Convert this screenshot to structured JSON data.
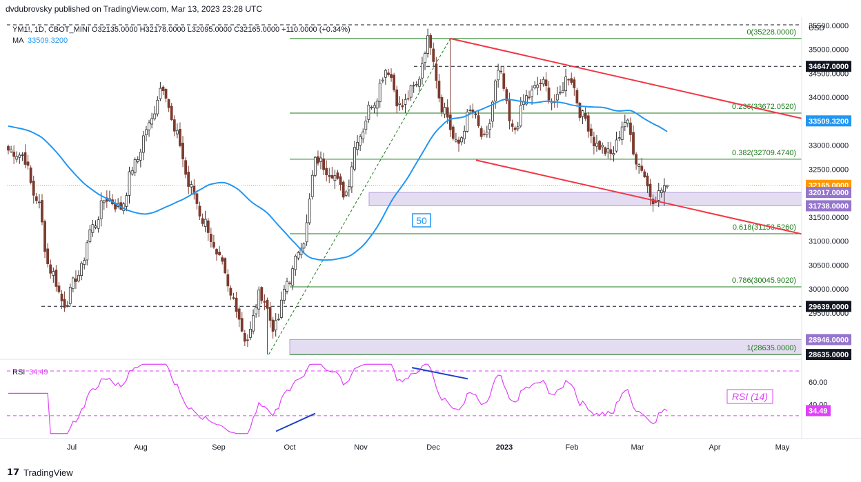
{
  "header": {
    "published": "dvdubrovsky published on TradingView.com, Mar 13, 2023 23:28 UTC"
  },
  "legend": {
    "symbol_line": "YM1!, 1D, CBOT_MINI  O32135.0000  H32178.0000  L32095.0000  C32165.0000  +110.0000 (+0.34%)",
    "ma_label": "MA",
    "ma_value": "33509.3200"
  },
  "currency": "USD",
  "annotations": {
    "ma_period": "50",
    "rsi_label": "RSI (14)",
    "rsi_legend": "RSI",
    "rsi_value": "34.49"
  },
  "brand": "TradingView",
  "colors": {
    "up": "#26a69a",
    "down": "#7b3b2f",
    "candle_up_fill": "#ffffff",
    "ma": "#2196f3",
    "trend": "#f23645",
    "fib": "#1b7a1b",
    "zone": "#b39ddb",
    "rsi": "#e040fb",
    "divergence": "#1e40c8",
    "price_tag": "#ff9800"
  },
  "chart_data": [
    {
      "type": "candlestick",
      "title": "YM1!, 1D, CBOT_MINI",
      "ylim": [
        28550,
        35600
      ],
      "y_ticks": [
        29500,
        30000,
        30500,
        31000,
        31500,
        32000,
        32500,
        33000,
        33500,
        34000,
        34500,
        35000,
        35500
      ],
      "y_tick_labels": [
        "29500.0000",
        "30000.0000",
        "30500.0000",
        "31000.0000",
        "31500.0000",
        "32000.0000",
        "32500.0000",
        "33000.0000",
        "33500.0000",
        "34000.0000",
        "34500.0000",
        "35000.0000",
        "35500.0000"
      ],
      "x_labels": [
        "Jul",
        "Aug",
        "Sep",
        "Oct",
        "Nov",
        "Dec",
        "2023",
        "Feb",
        "Mar",
        "Apr",
        "May"
      ],
      "ohlc": {
        "open": "32135.0000",
        "high": "32178.0000",
        "low": "32095.0000",
        "close": "32165.0000",
        "change": "+110.0000 (+0.34%)"
      },
      "swing_closes": [
        32900,
        32800,
        31900,
        30400,
        29700,
        30300,
        31300,
        31900,
        31700,
        32600,
        33400,
        34250,
        33200,
        32100,
        31400,
        30600,
        29800,
        28950,
        29900,
        29200,
        30200,
        31000,
        32700,
        32450,
        32000,
        33200,
        33900,
        34600,
        33800,
        34200,
        35200,
        33800,
        33000,
        33700,
        33100,
        34500,
        33300,
        34000,
        34300,
        33900,
        34450,
        33600,
        33000,
        32800,
        33500,
        32600,
        31900,
        32165
      ],
      "fibonacci": [
        {
          "level": "0",
          "price": 35228.0,
          "label": "0(35228.0000)"
        },
        {
          "level": "0.236",
          "price": 33672.052,
          "label": "0.236(33672.0520)"
        },
        {
          "level": "0.382",
          "price": 32709.474,
          "label": "0.382(32709.4740)"
        },
        {
          "level": "0.618",
          "price": 31153.526,
          "label": "0.618(31153.5260)"
        },
        {
          "level": "0.786",
          "price": 30045.902,
          "label": "0.786(30045.9020)"
        },
        {
          "level": "1",
          "price": 28635.0,
          "label": "1(28635.0000)"
        }
      ],
      "horizontal_levels": [
        {
          "price": 34647.0,
          "label": "34647.0000",
          "style": "dashed"
        },
        {
          "price": 29639.0,
          "label": "29639.0000",
          "style": "dashed"
        }
      ],
      "zones": [
        {
          "from": 31738.0,
          "to": 32017.0,
          "labels": [
            "32017.0000",
            "31738.0000"
          ]
        },
        {
          "from": 28635.0,
          "to": 28946.0,
          "labels": [
            "28946.0000",
            "28635.0000"
          ]
        }
      ],
      "price_tags": [
        {
          "price": 33509.32,
          "label": "33509.3200",
          "kind": "ma"
        },
        {
          "price": 32165.0,
          "label": "32165.0000",
          "kind": "last"
        }
      ]
    },
    {
      "type": "line",
      "title": "RSI (14)",
      "ylim": [
        12,
        78
      ],
      "y_tick_labels": [
        "60.00",
        "40.00"
      ],
      "levels": [
        70,
        30
      ],
      "last_value": 34.49
    }
  ]
}
